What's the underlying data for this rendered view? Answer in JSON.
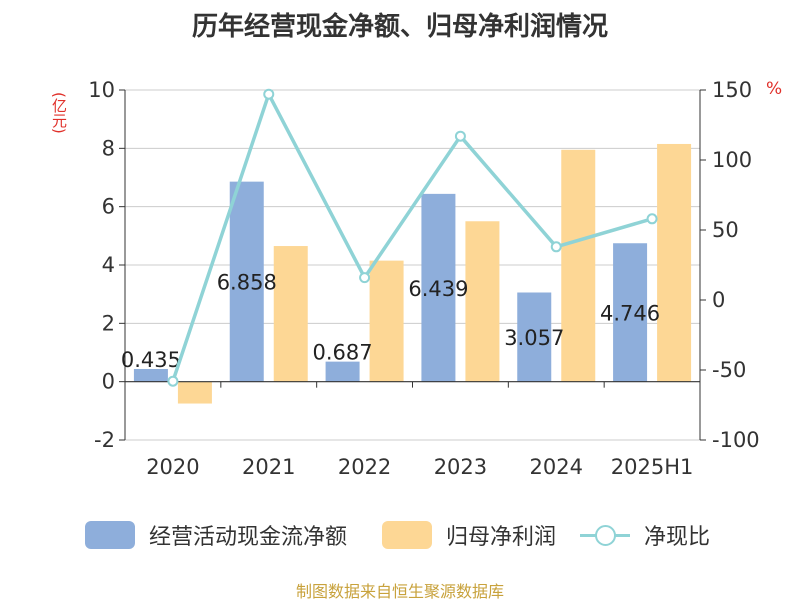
{
  "page": {
    "title": "历年经营现金净额、归母净利润情况",
    "source": "制图数据来自恒生聚源数据库"
  },
  "colors": {
    "bar_ocf": "#8eaedb",
    "bar_profit": "#fdd795",
    "line_ratio": "#8fd3d6",
    "ylabel": "#e0302a",
    "axis": "#333333",
    "grid": "#cccccc",
    "source": "#c8a23c"
  },
  "chart_data": {
    "type": "bar",
    "title": "历年经营现金净额、归母净利润情况",
    "categories": [
      "2020",
      "2021",
      "2022",
      "2023",
      "2024",
      "2025H1"
    ],
    "ylabel": "(亿元)",
    "y2label": "%",
    "ylim": [
      -2,
      10
    ],
    "y2lim": [
      -100,
      150
    ],
    "yticks": [
      "-2",
      "0",
      "2",
      "4",
      "6",
      "8",
      "10"
    ],
    "y2ticks": [
      "-100",
      "-50",
      "0",
      "50",
      "100",
      "150"
    ],
    "grid": true,
    "legend_position": "bottom",
    "series": [
      {
        "name": "经营活动现金流净额",
        "type": "bar",
        "axis": "left",
        "values": [
          0.435,
          6.858,
          0.687,
          6.439,
          3.057,
          4.746
        ],
        "labels": [
          "0.435",
          "6.858",
          "0.687",
          "6.439",
          "3.057",
          "4.746"
        ]
      },
      {
        "name": "归母净利润",
        "type": "bar",
        "axis": "left",
        "values": [
          -0.75,
          4.65,
          4.15,
          5.5,
          7.95,
          8.15
        ]
      },
      {
        "name": "净现比",
        "type": "line",
        "axis": "right",
        "values": [
          -58,
          147,
          16,
          117,
          38,
          58
        ]
      }
    ]
  }
}
